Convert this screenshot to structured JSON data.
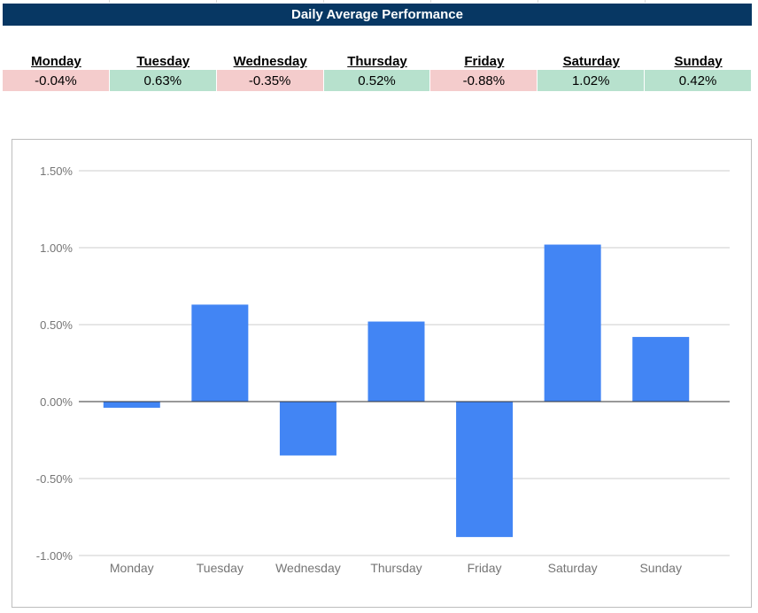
{
  "title": "Daily Average Performance",
  "colors": {
    "title_bg": "#073763",
    "negative_cell": "#f4cccc",
    "positive_cell": "#b7e1cd",
    "bar": "#4285f4"
  },
  "days": [
    {
      "label": "Monday",
      "value": "-0.04%",
      "sign": "negative"
    },
    {
      "label": "Tuesday",
      "value": "0.63%",
      "sign": "positive"
    },
    {
      "label": "Wednesday",
      "value": "-0.35%",
      "sign": "negative"
    },
    {
      "label": "Thursday",
      "value": "0.52%",
      "sign": "positive"
    },
    {
      "label": "Friday",
      "value": "-0.88%",
      "sign": "negative"
    },
    {
      "label": "Saturday",
      "value": "1.02%",
      "sign": "positive"
    },
    {
      "label": "Sunday",
      "value": "0.42%",
      "sign": "positive"
    }
  ],
  "chart_data": {
    "type": "bar",
    "categories": [
      "Monday",
      "Tuesday",
      "Wednesday",
      "Thursday",
      "Friday",
      "Saturday",
      "Sunday"
    ],
    "values": [
      -0.04,
      0.63,
      -0.35,
      0.52,
      -0.88,
      1.02,
      0.42
    ],
    "y_ticks": [
      1.5,
      1.0,
      0.5,
      0.0,
      -0.5,
      -1.0
    ],
    "y_tick_labels": [
      "1.50%",
      "1.00%",
      "0.50%",
      "0.00%",
      "-0.50%",
      "-1.00%"
    ],
    "ylim": [
      -1.0,
      1.5
    ],
    "grid": true,
    "legend": "none"
  }
}
